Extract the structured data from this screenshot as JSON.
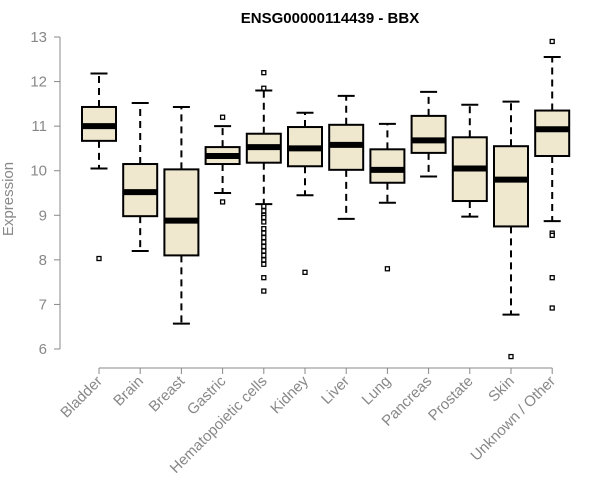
{
  "chart_data": {
    "type": "boxplot",
    "title": "ENSG00000114439 - BBX",
    "xlabel": "",
    "ylabel": "Expression",
    "ylim": [
      6,
      13
    ],
    "yticks": [
      6,
      7,
      8,
      9,
      10,
      11,
      12,
      13
    ],
    "colors": {
      "box_fill": "#efe8cf",
      "stroke": "#000000",
      "axis": "#888888"
    },
    "categories": [
      "Bladder",
      "Brain",
      "Breast",
      "Gastric",
      "Hematopoietic cells",
      "Kidney",
      "Liver",
      "Lung",
      "Pancreas",
      "Prostate",
      "Skin",
      "Unknown / Other"
    ],
    "boxes": [
      {
        "name": "Bladder",
        "whisker_low": 10.05,
        "q1": 10.67,
        "median": 11.0,
        "q3": 11.43,
        "whisker_high": 12.18,
        "outliers": [
          8.03
        ]
      },
      {
        "name": "Brain",
        "whisker_low": 8.2,
        "q1": 8.98,
        "median": 9.52,
        "q3": 10.15,
        "whisker_high": 11.52,
        "outliers": []
      },
      {
        "name": "Breast",
        "whisker_low": 6.57,
        "q1": 8.1,
        "median": 8.88,
        "q3": 10.03,
        "whisker_high": 11.43,
        "outliers": []
      },
      {
        "name": "Gastric",
        "whisker_low": 9.5,
        "q1": 10.15,
        "median": 10.33,
        "q3": 10.53,
        "whisker_high": 11.0,
        "outliers": [
          11.2,
          9.3
        ]
      },
      {
        "name": "Hematopoietic cells",
        "whisker_low": 9.25,
        "q1": 10.18,
        "median": 10.53,
        "q3": 10.83,
        "whisker_high": 11.8,
        "outliers": [
          12.2,
          11.85,
          9.2,
          9.1,
          9.0,
          8.95,
          8.85,
          8.7,
          8.6,
          8.5,
          8.4,
          8.3,
          8.2,
          8.1,
          8.0,
          7.9,
          7.6,
          7.3
        ]
      },
      {
        "name": "Kidney",
        "whisker_low": 9.45,
        "q1": 10.1,
        "median": 10.5,
        "q3": 10.98,
        "whisker_high": 11.3,
        "outliers": [
          7.72
        ]
      },
      {
        "name": "Liver",
        "whisker_low": 8.92,
        "q1": 10.02,
        "median": 10.58,
        "q3": 11.03,
        "whisker_high": 11.68,
        "outliers": []
      },
      {
        "name": "Lung",
        "whisker_low": 9.28,
        "q1": 9.73,
        "median": 10.02,
        "q3": 10.48,
        "whisker_high": 11.05,
        "outliers": [
          7.8
        ]
      },
      {
        "name": "Pancreas",
        "whisker_low": 9.87,
        "q1": 10.4,
        "median": 10.68,
        "q3": 11.23,
        "whisker_high": 11.77,
        "outliers": []
      },
      {
        "name": "Prostate",
        "whisker_low": 8.97,
        "q1": 9.32,
        "median": 10.05,
        "q3": 10.75,
        "whisker_high": 11.48,
        "outliers": []
      },
      {
        "name": "Skin",
        "whisker_low": 6.77,
        "q1": 8.75,
        "median": 9.8,
        "q3": 10.55,
        "whisker_high": 11.55,
        "outliers": [
          5.83
        ]
      },
      {
        "name": "Unknown / Other",
        "whisker_low": 8.87,
        "q1": 10.33,
        "median": 10.93,
        "q3": 11.35,
        "whisker_high": 12.55,
        "outliers": [
          12.9,
          8.6,
          8.55,
          7.6,
          6.92
        ]
      }
    ]
  }
}
